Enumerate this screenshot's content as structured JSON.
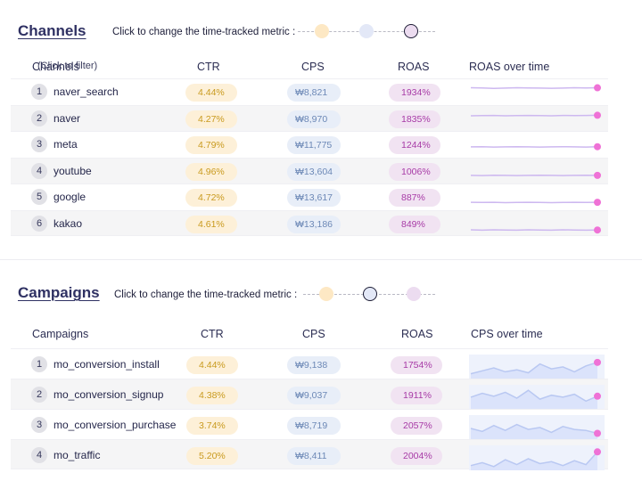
{
  "channels": {
    "title": "Channels",
    "metric_hint": "Click to change the time-tracked metric :",
    "active_metric": "ROAS",
    "headers": {
      "name": "Channels",
      "name_sub": "(Click to filter)",
      "ctr": "CTR",
      "cps": "CPS",
      "roas": "ROAS",
      "trend": "ROAS over time"
    },
    "rows": [
      {
        "rank": "1",
        "name": "naver_search",
        "ctr": "4.44%",
        "cps": "₩8,821",
        "roas": "1934%"
      },
      {
        "rank": "2",
        "name": "naver",
        "ctr": "4.27%",
        "cps": "₩8,970",
        "roas": "1835%"
      },
      {
        "rank": "3",
        "name": "meta",
        "ctr": "4.79%",
        "cps": "₩11,775",
        "roas": "1244%"
      },
      {
        "rank": "4",
        "name": "youtube",
        "ctr": "4.96%",
        "cps": "₩13,604",
        "roas": "1006%"
      },
      {
        "rank": "5",
        "name": "google",
        "ctr": "4.72%",
        "cps": "₩13,617",
        "roas": "887%"
      },
      {
        "rank": "6",
        "name": "kakao",
        "ctr": "4.61%",
        "cps": "₩13,186",
        "roas": "849%"
      }
    ]
  },
  "campaigns": {
    "title": "Campaigns",
    "metric_hint": "Click to change the time-tracked metric :",
    "active_metric": "CPS",
    "headers": {
      "name": "Campaigns",
      "ctr": "CTR",
      "cps": "CPS",
      "roas": "ROAS",
      "trend": "CPS over time"
    },
    "rows": [
      {
        "rank": "1",
        "name": "mo_conversion_install",
        "ctr": "4.44%",
        "cps": "₩9,138",
        "roas": "1754%"
      },
      {
        "rank": "2",
        "name": "mo_conversion_signup",
        "ctr": "4.38%",
        "cps": "₩9,037",
        "roas": "1911%"
      },
      {
        "rank": "3",
        "name": "mo_conversion_purchase",
        "ctr": "3.74%",
        "cps": "₩8,719",
        "roas": "2057%"
      },
      {
        "rank": "4",
        "name": "mo_traffic",
        "ctr": "5.20%",
        "cps": "₩8,411",
        "roas": "2004%"
      }
    ]
  },
  "colors": {
    "title": "#2f3163",
    "ctr_pill": "#fdf0d8",
    "cps_pill": "#e8eef8",
    "roas_pill": "#f1e3f2",
    "roas_line": "#cdb8f0",
    "cps_line": "#b9c8f2",
    "marker": "#ef72d6"
  }
}
